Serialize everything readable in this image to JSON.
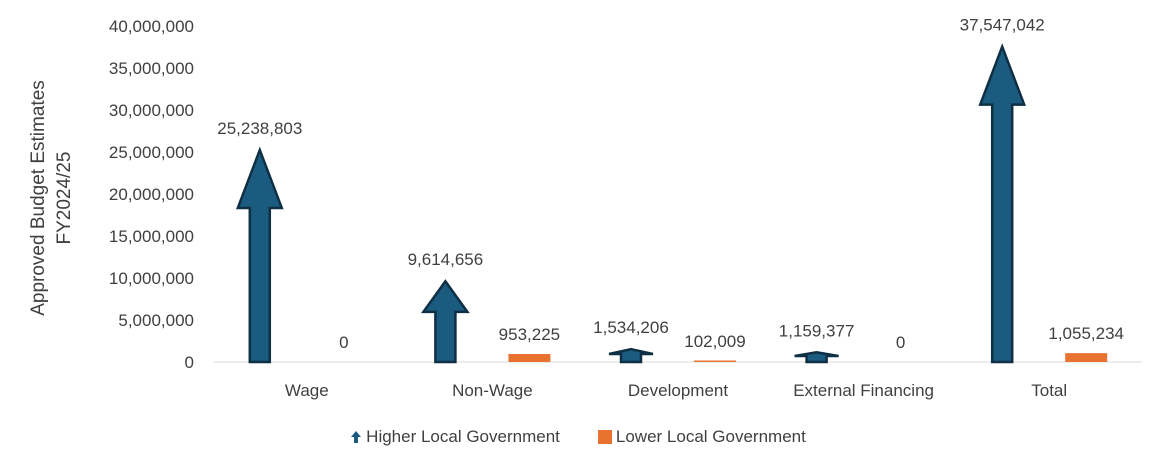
{
  "chart_data": {
    "type": "bar",
    "ylabel": "Approved Budget Estimates\nFY2024/25",
    "categories": [
      "Wage",
      "Non-Wage",
      "Development",
      "External Financing",
      "Total"
    ],
    "ylim": [
      0,
      40000000
    ],
    "yticks": [
      0,
      5000000,
      10000000,
      15000000,
      20000000,
      25000000,
      30000000,
      35000000,
      40000000
    ],
    "ytick_labels": [
      "0",
      "5,000,000",
      "10,000,000",
      "15,000,000",
      "20,000,000",
      "25,000,000",
      "30,000,000",
      "35,000,000",
      "40,000,000"
    ],
    "grid": false,
    "legend_position": "bottom",
    "series": [
      {
        "name": "Higher Local Government",
        "marker": "arrow",
        "color": "#1b5b80",
        "values": [
          25238803,
          9614656,
          1534206,
          1159377,
          37547042
        ],
        "labels": [
          "25,238,803",
          "9,614,656",
          "1,534,206",
          "1,159,377",
          "37,547,042"
        ]
      },
      {
        "name": "Lower Local Government",
        "marker": "bar",
        "color": "#e8722f",
        "values": [
          0,
          953225,
          102009,
          0,
          1055234
        ],
        "labels": [
          "0",
          "953,225",
          "102,009",
          "0",
          "1,055,234"
        ]
      }
    ]
  }
}
